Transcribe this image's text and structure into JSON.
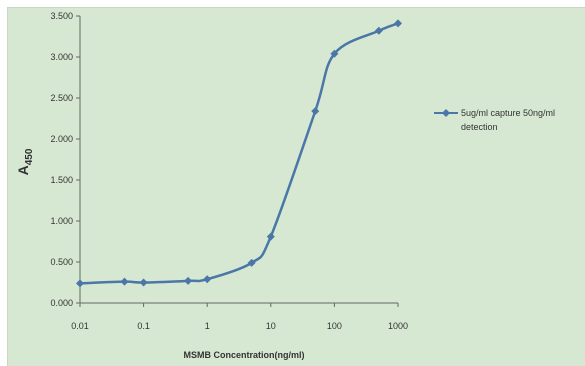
{
  "chart_data": {
    "type": "line",
    "xscale": "log",
    "x": [
      0.01,
      0.05,
      0.1,
      0.5,
      1,
      5,
      10,
      50,
      100,
      500,
      1000
    ],
    "series": [
      {
        "name": "5ug/ml capture 50ng/ml detection",
        "legend_lines": [
          "5ug/ml capture 50ng/ml",
          "detection"
        ],
        "values": [
          0.24,
          0.26,
          0.25,
          0.27,
          0.29,
          0.49,
          0.81,
          2.34,
          3.04,
          3.32,
          3.41
        ],
        "color": "#4a76a8"
      }
    ],
    "xticks": [
      "0.01",
      "0.1",
      "1",
      "10",
      "100",
      "1000"
    ],
    "yticks": [
      "0.000",
      "0.500",
      "1.000",
      "1.500",
      "2.000",
      "2.500",
      "3.000",
      "3.500"
    ],
    "ylim": [
      0,
      3.5
    ],
    "xlim": [
      0.01,
      1000
    ],
    "xlabel": "MSMB Concentration(ng/ml)",
    "ylabel_main": "A",
    "ylabel_sub": "450",
    "legend_position": "right",
    "grid": false
  }
}
